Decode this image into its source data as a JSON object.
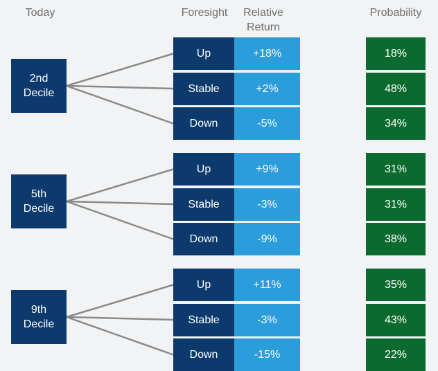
{
  "header": {
    "today": "Today",
    "foresight": "Foresight",
    "relative_return": "Relative Return",
    "probability": "Probability"
  },
  "groups": [
    {
      "label": "2nd Decile",
      "branches": [
        {
          "foresight": "Up",
          "return": "+18%",
          "probability": "18%"
        },
        {
          "foresight": "Stable",
          "return": "+2%",
          "probability": "48%"
        },
        {
          "foresight": "Down",
          "return": "-5%",
          "probability": "34%"
        }
      ]
    },
    {
      "label": "5th Decile",
      "branches": [
        {
          "foresight": "Up",
          "return": "+9%",
          "probability": "31%"
        },
        {
          "foresight": "Stable",
          "return": "-3%",
          "probability": "31%"
        },
        {
          "foresight": "Down",
          "return": "-9%",
          "probability": "38%"
        }
      ]
    },
    {
      "label": "9th Decile",
      "branches": [
        {
          "foresight": "Up",
          "return": "+11%",
          "probability": "35%"
        },
        {
          "foresight": "Stable",
          "return": "-3%",
          "probability": "43%"
        },
        {
          "foresight": "Down",
          "return": "-15%",
          "probability": "22%"
        }
      ]
    }
  ]
}
